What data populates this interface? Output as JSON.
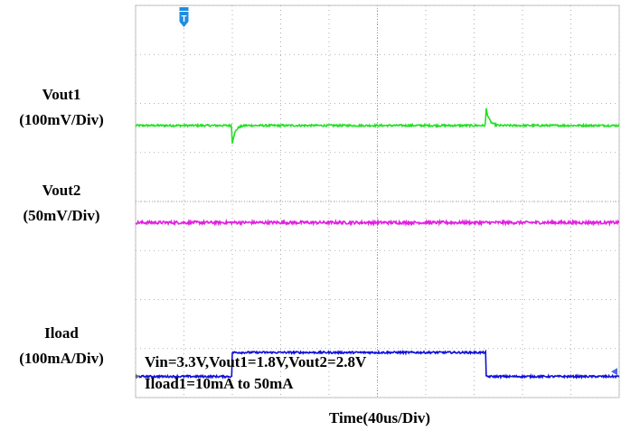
{
  "chart_data": {
    "type": "line",
    "title": "",
    "xlabel": "Time(40us/Div)",
    "x_divisions": 10,
    "y_divisions": 8,
    "x_unit": "us",
    "us_per_div": 40,
    "xlim": [
      0,
      400
    ],
    "grid": true,
    "grid_style": "dotted",
    "trigger_marker": {
      "label": "T",
      "x": 40,
      "color": "#1e8ee0"
    },
    "series": [
      {
        "name": "Vout1",
        "scale_label": "(100mV/Div)",
        "color": "#22e022",
        "baseline_div": 5.55,
        "noise_div": 0.02,
        "events": [
          {
            "x": 80,
            "shape": "dip",
            "peak_div": -0.35
          },
          {
            "x": 290,
            "shape": "spike",
            "peak_div": 0.35
          }
        ]
      },
      {
        "name": "Vout2",
        "scale_label": "(50mV/Div)",
        "color": "#e020e0",
        "baseline_div": 3.57,
        "noise_div": 0.03,
        "events": []
      },
      {
        "name": "Iload",
        "scale_label": "(100mA/Div)",
        "color": "#1010d8",
        "low_div": 0.43,
        "high_div": 0.92,
        "noise_div": 0.02,
        "step_up_x": 80,
        "step_down_x": 290
      }
    ],
    "annotations": [
      "Vin=3.3V,Vout1=1.8V,Vout2=2.8V",
      "Iload1=10mA to 50mA"
    ],
    "right_marker_color": "#4a66e8"
  }
}
